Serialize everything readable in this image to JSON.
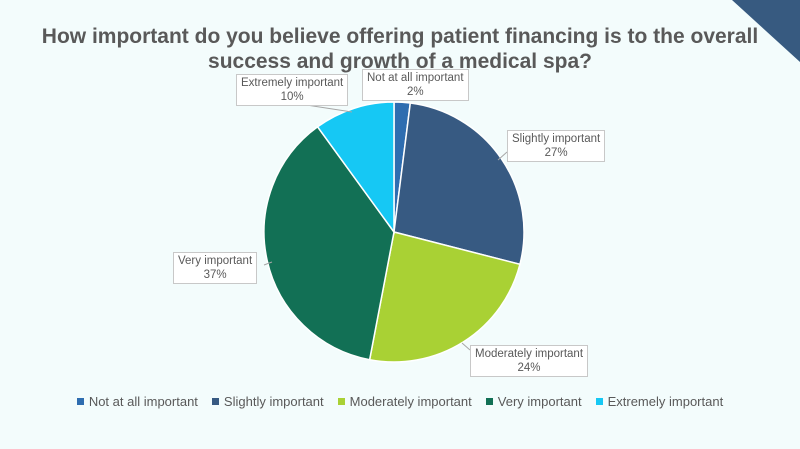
{
  "chart_data": {
    "type": "pie",
    "title": "How important do you believe offering patient financing is to the overall success and growth of a medical spa?",
    "categories": [
      "Not at all important",
      "Slightly important",
      "Moderately important",
      "Very important",
      "Extremely important"
    ],
    "values": [
      2,
      27,
      24,
      37,
      10
    ],
    "labels": [
      "2%",
      "27%",
      "24%",
      "37%",
      "10%"
    ],
    "colors": [
      "#2e6db0",
      "#375a82",
      "#a9d134",
      "#127055",
      "#16c8f4"
    ],
    "legend": "bottom"
  },
  "accent_color": "#375a80"
}
